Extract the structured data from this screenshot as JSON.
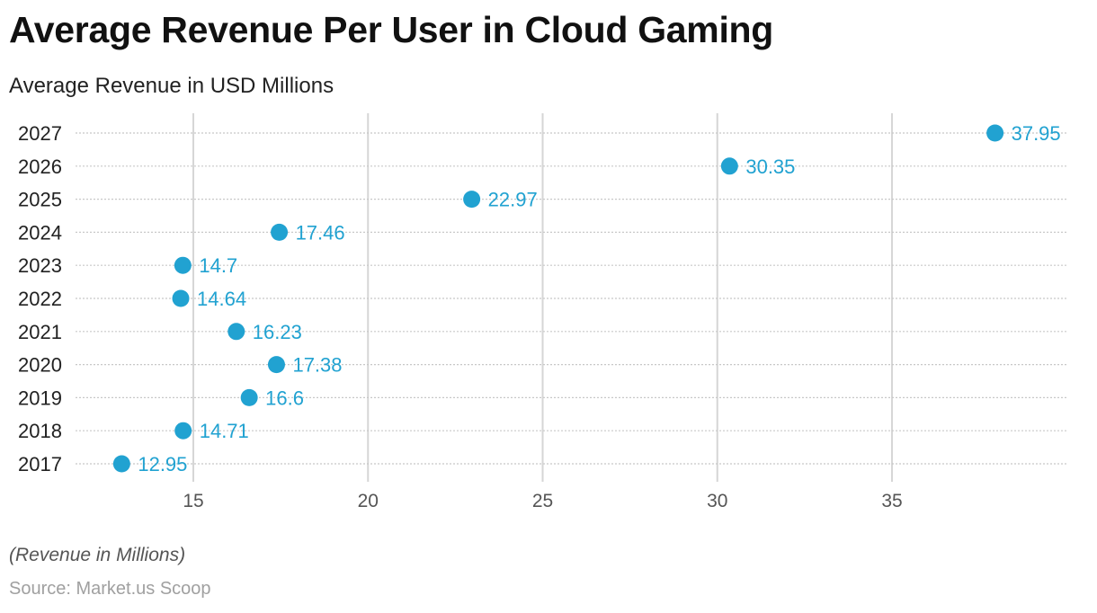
{
  "header": {
    "title": "Average Revenue Per User in Cloud Gaming",
    "subtitle": "Average Revenue in USD Millions"
  },
  "footer": {
    "note": "(Revenue in Millions)",
    "source": "Source: Market.us Scoop"
  },
  "colors": {
    "dot": "#21a2d1",
    "label": "#21a2d1",
    "grid": "#d6d6d6",
    "row_line": "#c8c8c8",
    "tick_text": "#555555",
    "category_text": "#222222"
  },
  "chart_data": {
    "type": "scatter",
    "subtype": "dot-plot",
    "title": "Average Revenue Per User in Cloud Gaming",
    "subtitle": "Average Revenue in USD Millions",
    "xlabel": "",
    "ylabel": "",
    "categories": [
      "2027",
      "2026",
      "2025",
      "2024",
      "2023",
      "2022",
      "2021",
      "2020",
      "2019",
      "2018",
      "2017"
    ],
    "values": [
      37.95,
      30.35,
      22.97,
      17.46,
      14.7,
      14.64,
      16.23,
      17.38,
      16.6,
      14.71,
      12.95
    ],
    "labels": [
      "37.95",
      "30.35",
      "22.97",
      "17.46",
      "14.7",
      "14.64",
      "16.23",
      "17.38",
      "16.6",
      "14.71",
      "12.95"
    ],
    "xlim": [
      13.0,
      38.0
    ],
    "xticks": [
      15,
      20,
      25,
      30,
      35
    ],
    "xtick_labels": [
      "15",
      "20",
      "25",
      "30",
      "35"
    ],
    "grid": true,
    "legend": "none"
  }
}
